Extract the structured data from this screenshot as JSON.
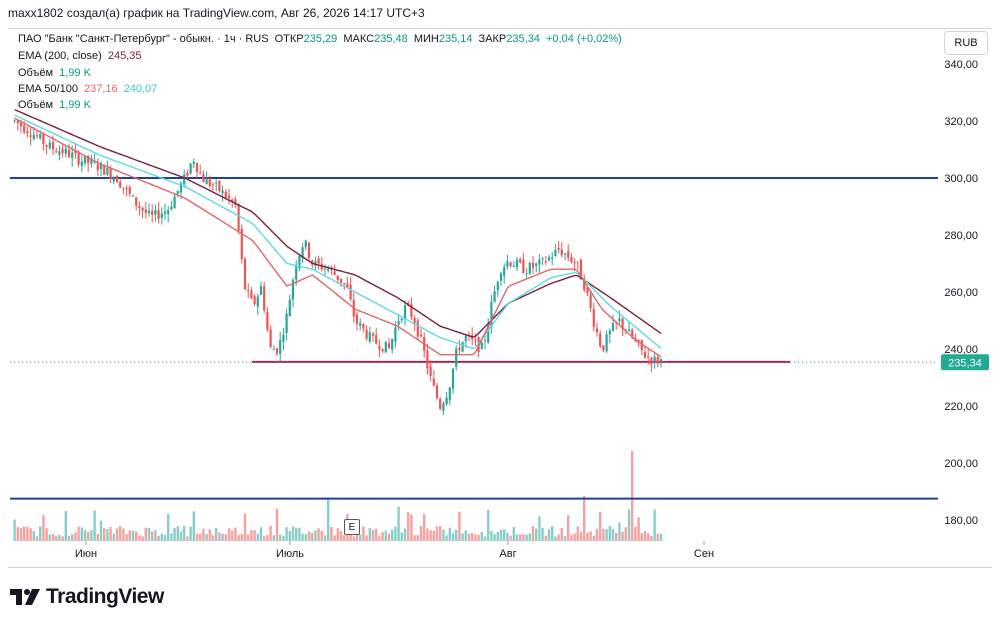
{
  "header": {
    "text": "maxx1802 создал(а) график на TradingView.com, Авг 26, 2026 14:17 UTC+3"
  },
  "legend": {
    "symbol": "ПАО \"Банк \"Санкт-Петербург\" - обыкн. · 1ч · RUS",
    "open_label": "ОТКР",
    "open": "235,29",
    "high_label": "МАКС",
    "high": "235,48",
    "low_label": "МИН",
    "low": "235,14",
    "close_label": "ЗАКР",
    "close": "235,34",
    "change": "+0,04 (+0,02%)",
    "ema200_label": "EMA (200, close)",
    "ema200_value": "245,35",
    "volume1_label": "Объём",
    "volume1_value": "1,99 K",
    "ema50100_label": "EMA 50/100",
    "ema50_value": "237,16",
    "ema100_value": "240,07",
    "volume2_label": "Объём",
    "volume2_value": "1,99 K"
  },
  "currency": "RUB",
  "event_marker": "E",
  "footer": {
    "brand": "TradingView"
  },
  "colors": {
    "up": "#26a69a",
    "down": "#ef5350",
    "ema50": "#e0676b",
    "ema100": "#5fd9e8",
    "ema200": "#7b1f3b",
    "hline_blue": "#1e3f9c",
    "hline_red": "#b21f55",
    "price_tag": "#22ab94",
    "text_green": "#089981",
    "ema200_text": "#7b1f3b"
  },
  "chart_data": {
    "type": "candlestick",
    "x_labels": [
      "Июн",
      "Июль",
      "Авг",
      "Сен"
    ],
    "y_ticks": [
      "340,00",
      "320,00",
      "300,00",
      "280,00",
      "260,00",
      "240,00",
      "220,00",
      "200,00",
      "180,00"
    ],
    "ylim": [
      170,
      345
    ],
    "current_price": 235.34,
    "current_price_label": "235,34",
    "horizontal_lines": [
      {
        "name": "resistance",
        "price": 300,
        "color": "#1e3f9c"
      },
      {
        "name": "support",
        "price": 235.5,
        "color": "#b21f55"
      },
      {
        "name": "lower",
        "price": 187.5,
        "color": "#1e3f9c"
      }
    ],
    "price_path": [
      [
        0,
        320
      ],
      [
        4,
        316
      ],
      [
        8,
        311
      ],
      [
        12,
        309
      ],
      [
        16,
        306
      ],
      [
        20,
        304
      ],
      [
        24,
        300
      ],
      [
        28,
        292
      ],
      [
        32,
        286
      ],
      [
        36,
        289
      ],
      [
        40,
        300
      ],
      [
        42,
        307
      ],
      [
        44,
        300
      ],
      [
        48,
        296
      ],
      [
        52,
        290
      ],
      [
        54,
        262
      ],
      [
        56,
        255
      ],
      [
        58,
        262
      ],
      [
        60,
        240
      ],
      [
        62,
        240
      ],
      [
        64,
        252
      ],
      [
        66,
        270
      ],
      [
        68,
        278
      ],
      [
        70,
        270
      ],
      [
        74,
        268
      ],
      [
        78,
        262
      ],
      [
        80,
        250
      ],
      [
        84,
        243
      ],
      [
        88,
        240
      ],
      [
        90,
        250
      ],
      [
        92,
        255
      ],
      [
        94,
        250
      ],
      [
        96,
        240
      ],
      [
        98,
        228
      ],
      [
        100,
        220
      ],
      [
        102,
        226
      ],
      [
        104,
        240
      ],
      [
        106,
        244
      ],
      [
        108,
        242
      ],
      [
        110,
        240
      ],
      [
        112,
        255
      ],
      [
        114,
        268
      ],
      [
        116,
        271
      ],
      [
        120,
        268
      ],
      [
        124,
        270
      ],
      [
        128,
        275
      ],
      [
        132,
        270
      ],
      [
        134,
        262
      ],
      [
        136,
        250
      ],
      [
        138,
        240
      ],
      [
        140,
        246
      ],
      [
        142,
        250
      ],
      [
        144,
        246
      ],
      [
        146,
        242
      ],
      [
        148,
        238
      ],
      [
        150,
        236
      ],
      [
        152,
        236
      ]
    ],
    "ema50": [
      [
        0,
        321
      ],
      [
        20,
        305
      ],
      [
        40,
        293
      ],
      [
        56,
        278
      ],
      [
        64,
        262
      ],
      [
        70,
        266
      ],
      [
        80,
        254
      ],
      [
        90,
        248
      ],
      [
        100,
        238
      ],
      [
        108,
        238
      ],
      [
        116,
        262
      ],
      [
        126,
        268
      ],
      [
        132,
        268
      ],
      [
        138,
        254
      ],
      [
        146,
        243
      ],
      [
        152,
        237.16
      ]
    ],
    "ema100": [
      [
        0,
        322
      ],
      [
        20,
        308
      ],
      [
        40,
        297
      ],
      [
        56,
        284
      ],
      [
        64,
        270
      ],
      [
        70,
        268
      ],
      [
        80,
        260
      ],
      [
        90,
        252
      ],
      [
        100,
        244
      ],
      [
        108,
        240
      ],
      [
        116,
        256
      ],
      [
        126,
        265
      ],
      [
        132,
        267
      ],
      [
        140,
        255
      ],
      [
        152,
        240.07
      ]
    ],
    "ema200": [
      [
        0,
        324
      ],
      [
        20,
        311
      ],
      [
        40,
        300
      ],
      [
        56,
        288
      ],
      [
        64,
        276
      ],
      [
        70,
        270
      ],
      [
        80,
        266
      ],
      [
        90,
        258
      ],
      [
        100,
        248
      ],
      [
        108,
        244
      ],
      [
        116,
        256
      ],
      [
        126,
        263
      ],
      [
        132,
        266
      ],
      [
        140,
        258
      ],
      [
        152,
        245.35
      ]
    ],
    "volume_spikes": [
      [
        42,
        0.33
      ],
      [
        54,
        0.3
      ],
      [
        62,
        0.36
      ],
      [
        74,
        0.48
      ],
      [
        78,
        0.3
      ],
      [
        90,
        0.38
      ],
      [
        96,
        0.3
      ],
      [
        134,
        0.5
      ],
      [
        145,
        1.0
      ],
      [
        150,
        0.35
      ]
    ]
  }
}
